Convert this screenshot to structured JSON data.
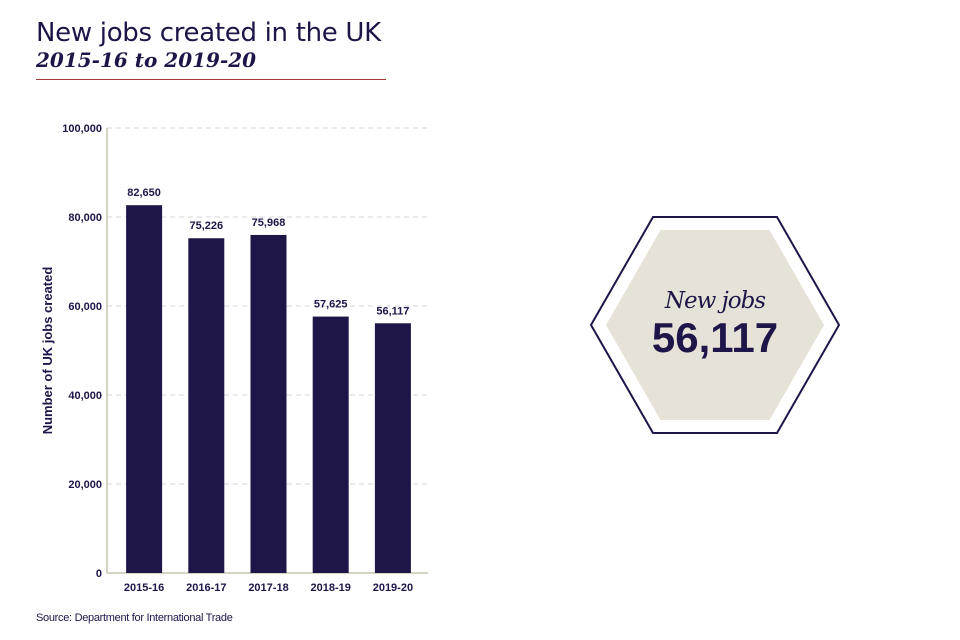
{
  "header": {
    "title": "New jobs created in the UK",
    "subtitle": "2015-16 to 2019-20"
  },
  "source": "Source: Department for International Trade",
  "callout": {
    "label": "New jobs",
    "value": "56,117"
  },
  "colors": {
    "bar": "#1e1548",
    "hex_fill": "#e7e2d7",
    "hex_outline": "#1e1548",
    "title_rule": "#a83a3a",
    "grid": "#d6d6d6",
    "axis": "#c8c3b0"
  },
  "chart_data": {
    "type": "bar",
    "title": "",
    "xlabel": "",
    "ylabel": "Number of UK jobs created",
    "categories": [
      "2015-16",
      "2016-17",
      "2017-18",
      "2018-19",
      "2019-20"
    ],
    "values": [
      82650,
      75226,
      75968,
      57625,
      56117
    ],
    "value_labels": [
      "82,650",
      "75,226",
      "75,968",
      "57,625",
      "56,117"
    ],
    "ylim": [
      0,
      100000
    ],
    "yticks": [
      0,
      20000,
      40000,
      60000,
      80000,
      100000
    ],
    "ytick_labels": [
      "0",
      "20,000",
      "40,000",
      "60,000",
      "80,000",
      "100,000"
    ],
    "grid": true,
    "grid_style": "dashed",
    "legend": "none"
  }
}
